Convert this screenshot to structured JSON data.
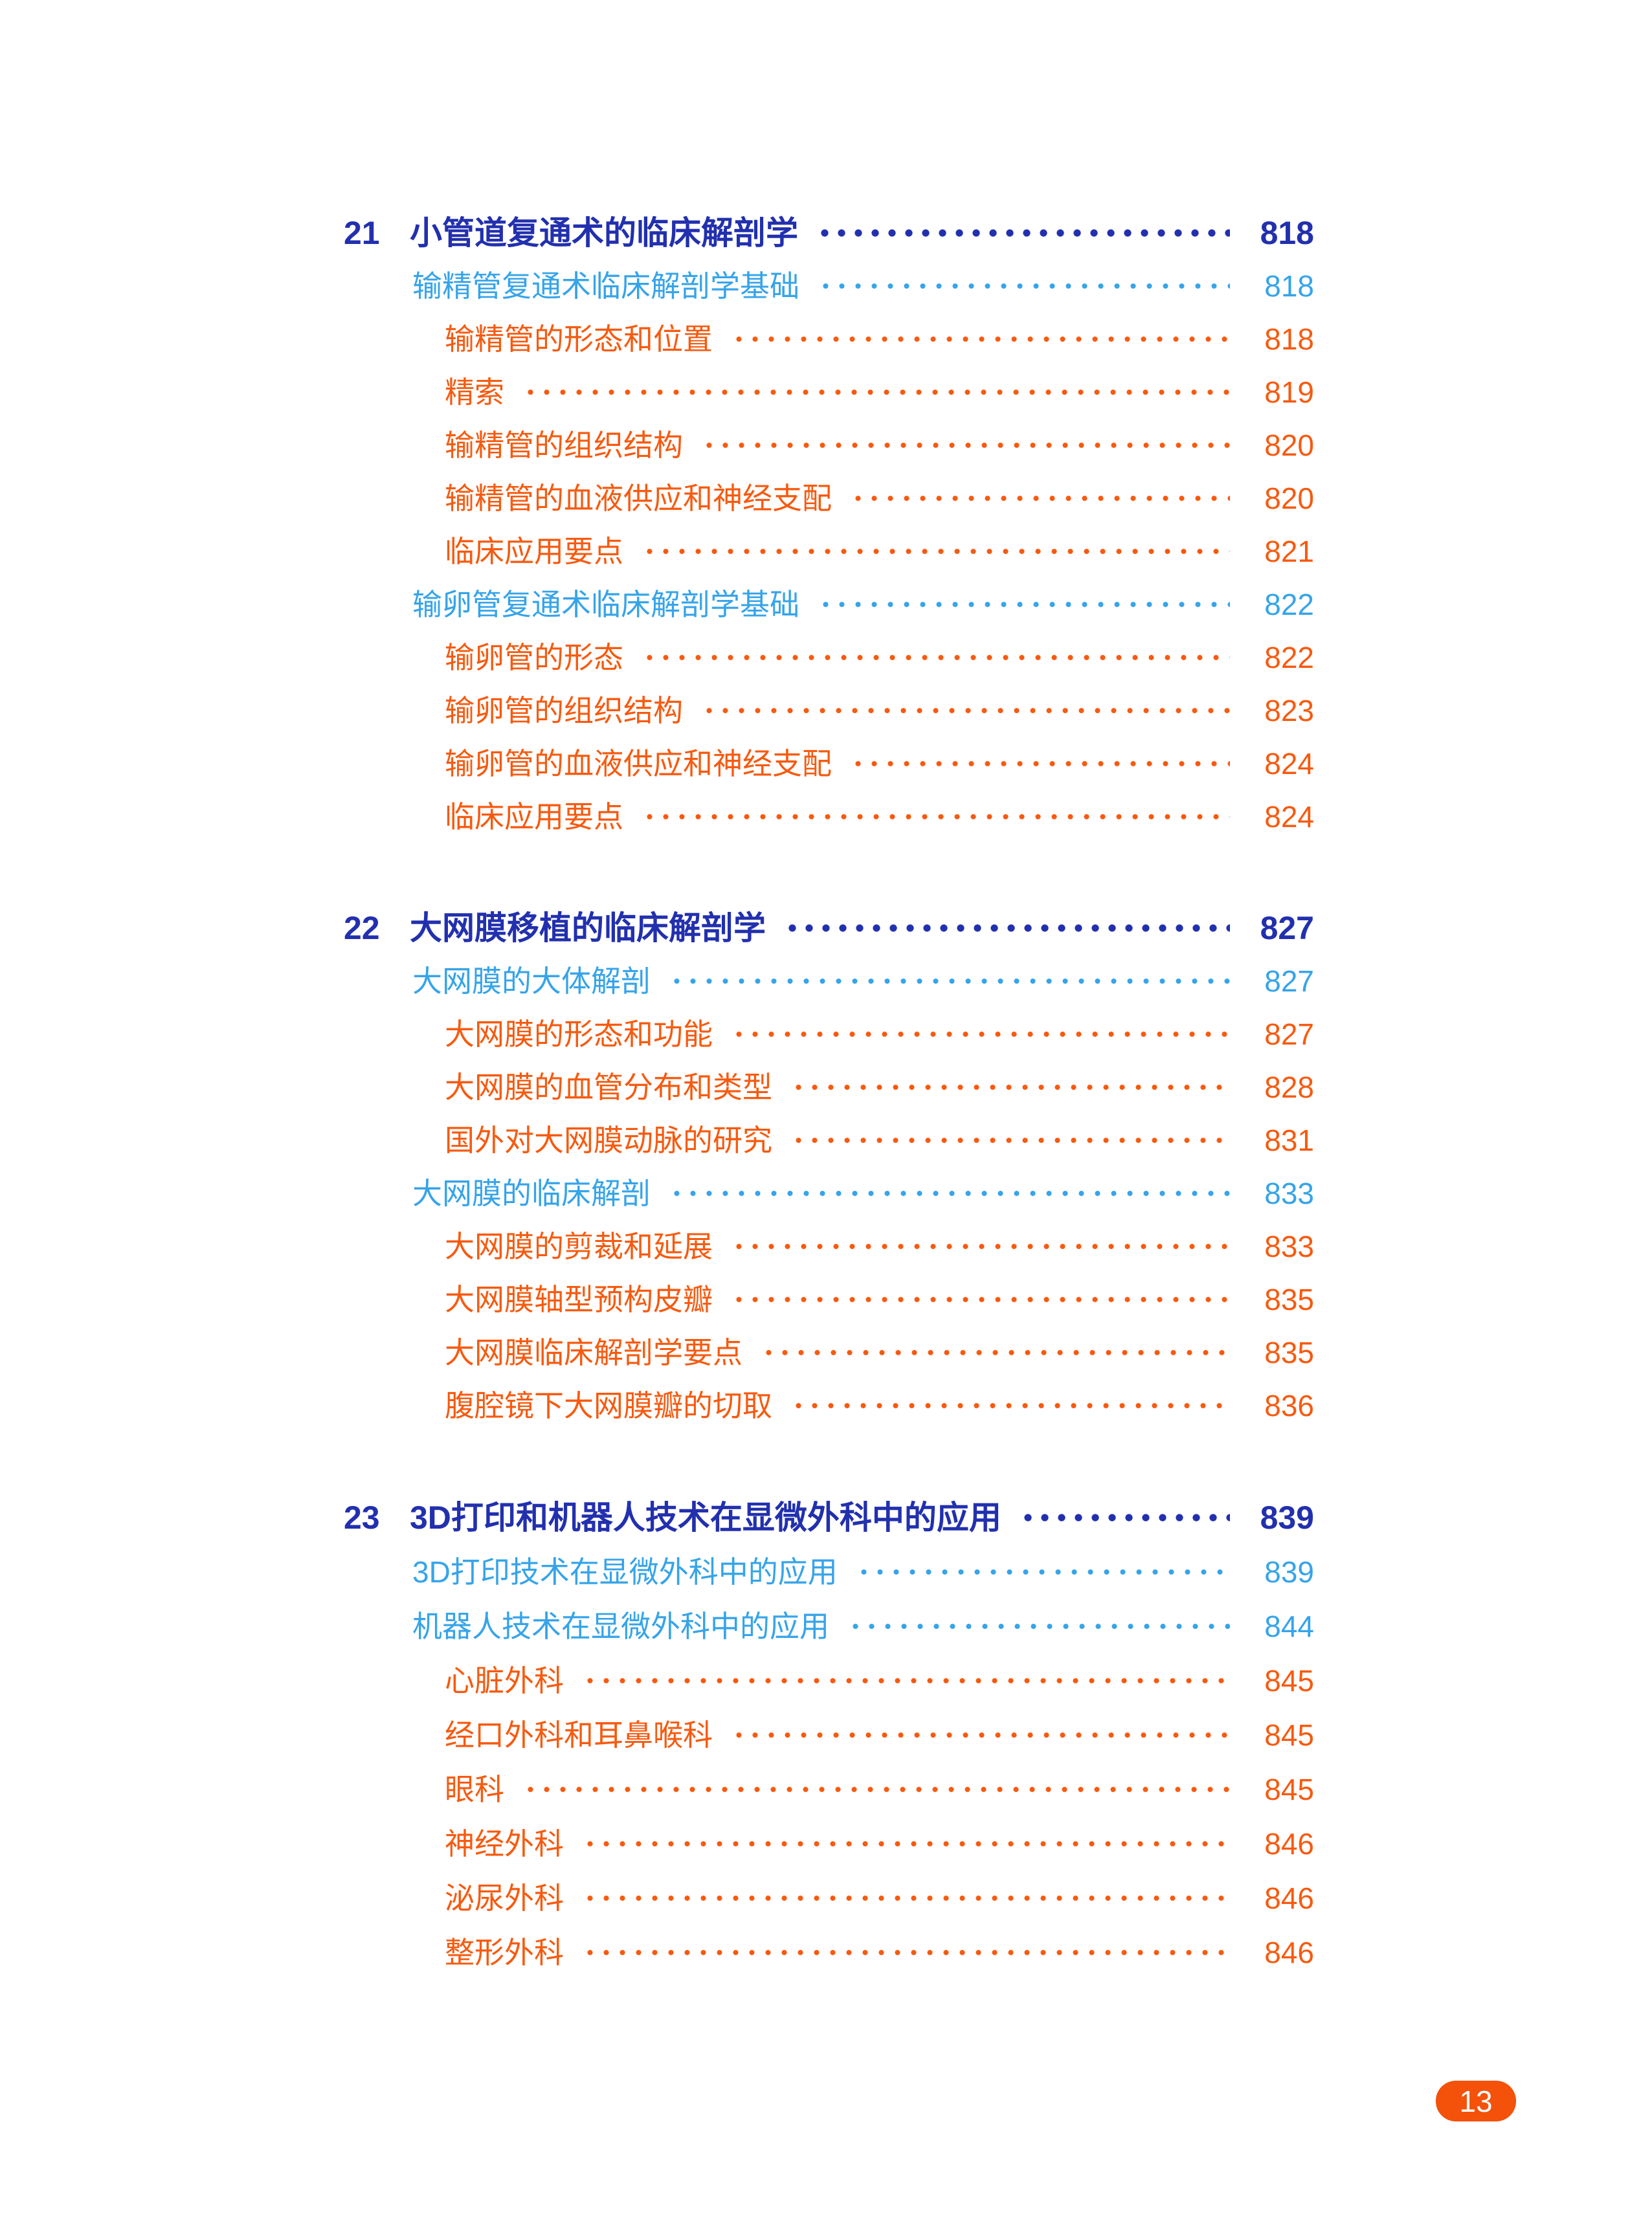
{
  "page": {
    "type": "table-of-contents",
    "page_badge": "13",
    "colors": {
      "chapter_blue": "#2230AE",
      "section_light_blue": "#36A4E9",
      "subsection_orange": "#F75A0F",
      "badge_background": "#F4510B",
      "badge_text": "#FFFFFF"
    }
  },
  "chapters": [
    {
      "number": "21",
      "title": "小管道复通术的临床解剖学",
      "page": "818",
      "items": [
        {
          "level": 2,
          "label": "输精管复通术临床解剖学基础",
          "page": "818"
        },
        {
          "level": 3,
          "label": "输精管的形态和位置",
          "page": "818"
        },
        {
          "level": 3,
          "label": "精索",
          "page": "819"
        },
        {
          "level": 3,
          "label": "输精管的组织结构",
          "page": "820"
        },
        {
          "level": 3,
          "label": "输精管的血液供应和神经支配",
          "page": "820"
        },
        {
          "level": 3,
          "label": "临床应用要点",
          "page": "821"
        },
        {
          "level": 2,
          "label": "输卵管复通术临床解剖学基础",
          "page": "822"
        },
        {
          "level": 3,
          "label": "输卵管的形态",
          "page": "822"
        },
        {
          "level": 3,
          "label": "输卵管的组织结构",
          "page": "823"
        },
        {
          "level": 3,
          "label": "输卵管的血液供应和神经支配",
          "page": "824"
        },
        {
          "level": 3,
          "label": "临床应用要点",
          "page": "824"
        }
      ]
    },
    {
      "number": "22",
      "title": "大网膜移植的临床解剖学",
      "page": "827",
      "items": [
        {
          "level": 2,
          "label": "大网膜的大体解剖",
          "page": "827"
        },
        {
          "level": 3,
          "label": "大网膜的形态和功能",
          "page": "827"
        },
        {
          "level": 3,
          "label": "大网膜的血管分布和类型",
          "page": "828"
        },
        {
          "level": 3,
          "label": "国外对大网膜动脉的研究",
          "page": "831"
        },
        {
          "level": 2,
          "label": "大网膜的临床解剖",
          "page": "833"
        },
        {
          "level": 3,
          "label": "大网膜的剪裁和延展",
          "page": "833"
        },
        {
          "level": 3,
          "label": "大网膜轴型预构皮瓣",
          "page": "835"
        },
        {
          "level": 3,
          "label": "大网膜临床解剖学要点",
          "page": "835"
        },
        {
          "level": 3,
          "label": "腹腔镜下大网膜瓣的切取",
          "page": "836"
        }
      ]
    },
    {
      "number": "23",
      "title": "3D打印和机器人技术在显微外科中的应用",
      "page": "839",
      "items": [
        {
          "level": 2,
          "label": "3D打印技术在显微外科中的应用",
          "page": "839"
        },
        {
          "level": 2,
          "label": "机器人技术在显微外科中的应用",
          "page": "844"
        },
        {
          "level": 3,
          "label": "心脏外科",
          "page": "845"
        },
        {
          "level": 3,
          "label": "经口外科和耳鼻喉科",
          "page": "845"
        },
        {
          "level": 3,
          "label": "眼科",
          "page": "845"
        },
        {
          "level": 3,
          "label": "神经外科",
          "page": "846"
        },
        {
          "level": 3,
          "label": "泌尿外科",
          "page": "846"
        },
        {
          "level": 3,
          "label": "整形外科",
          "page": "846"
        }
      ]
    }
  ]
}
